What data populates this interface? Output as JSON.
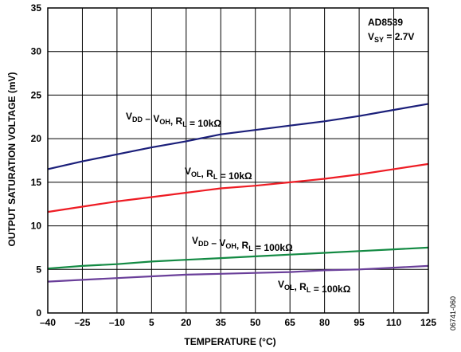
{
  "chart_data": {
    "type": "line",
    "device": "AD8539",
    "supply": {
      "main": "V",
      "sub": "SY",
      "rest": " = 2.7V"
    },
    "xlabel": "TEMPERATURE (°C)",
    "ylabel": "OUTPUT SATURATION VOLTAGE (mV)",
    "xlim": [
      -40,
      125
    ],
    "ylim": [
      0,
      35
    ],
    "x_ticks": [
      -40,
      -25,
      -10,
      5,
      20,
      35,
      50,
      65,
      80,
      95,
      110,
      125
    ],
    "x_tick_labels": [
      "–40",
      "–25",
      "–10",
      "5",
      "20",
      "35",
      "50",
      "65",
      "80",
      "95",
      "110",
      "125"
    ],
    "y_ticks": [
      0,
      5,
      10,
      15,
      20,
      25,
      30,
      35
    ],
    "y_tick_labels": [
      "0",
      "5",
      "10",
      "15",
      "20",
      "25",
      "30",
      "35"
    ],
    "grid": true,
    "figure_id": "06741-060",
    "series": [
      {
        "color": "#1b1f7a",
        "x": [
          -40,
          -25,
          -10,
          5,
          20,
          35,
          50,
          65,
          80,
          95,
          110,
          125
        ],
        "y": [
          16.5,
          17.4,
          18.2,
          19.0,
          19.7,
          20.5,
          21.0,
          21.5,
          22.0,
          22.6,
          23.3,
          24.0
        ],
        "label": {
          "parts": [
            [
              "V",
              "DD"
            ],
            [
              " – V",
              "OH"
            ],
            [
              ", R",
              "L"
            ],
            [
              " = 10kΩ",
              ""
            ]
          ]
        }
      },
      {
        "color": "#ee1c24",
        "x": [
          -40,
          -25,
          -10,
          5,
          20,
          35,
          50,
          65,
          80,
          95,
          110,
          125
        ],
        "y": [
          11.6,
          12.2,
          12.8,
          13.3,
          13.8,
          14.3,
          14.6,
          15.0,
          15.4,
          15.9,
          16.5,
          17.1
        ],
        "label": {
          "parts": [
            [
              "V",
              "OL"
            ],
            [
              ", R",
              "L"
            ],
            [
              " = 10kΩ",
              ""
            ]
          ]
        }
      },
      {
        "color": "#138a43",
        "x": [
          -40,
          -25,
          -10,
          5,
          20,
          35,
          50,
          65,
          80,
          95,
          110,
          125
        ],
        "y": [
          5.1,
          5.4,
          5.6,
          5.9,
          6.1,
          6.3,
          6.5,
          6.7,
          6.9,
          7.1,
          7.3,
          7.5
        ],
        "label": {
          "parts": [
            [
              "V",
              "DD"
            ],
            [
              " – V",
              "OH"
            ],
            [
              ", R",
              "L"
            ],
            [
              " = 100kΩ",
              ""
            ]
          ]
        }
      },
      {
        "color": "#6a3f9a",
        "x": [
          -40,
          -25,
          -10,
          5,
          20,
          35,
          50,
          65,
          80,
          95,
          110,
          125
        ],
        "y": [
          3.6,
          3.8,
          4.0,
          4.2,
          4.4,
          4.5,
          4.6,
          4.7,
          4.9,
          5.0,
          5.2,
          5.4
        ],
        "label": {
          "parts": [
            [
              "V",
              "OL"
            ],
            [
              ", R",
              "L"
            ],
            [
              " = 100kΩ",
              ""
            ]
          ]
        }
      }
    ]
  }
}
